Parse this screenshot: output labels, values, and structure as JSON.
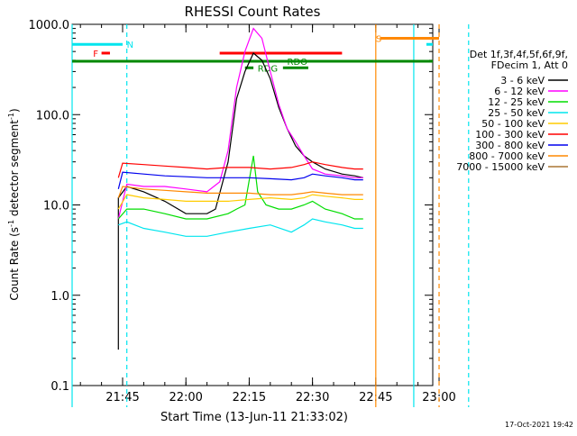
{
  "chart_data": {
    "type": "line",
    "title": "RHESSI Count Rates",
    "xlabel": "Start Time (13-Jun-11 21:33:02)",
    "ylabel_main": "Count Rate (s",
    "ylabel_sup1": "-1",
    "ylabel_mid": " detector segment",
    "ylabel_sup2": "-1",
    "ylabel_end": ")",
    "timestamp": "17-Oct-2021 19:42",
    "x_scale": "time",
    "x_range": [
      "21:33:02",
      "22:58:30"
    ],
    "x_ticks": [
      "21:45",
      "22:00",
      "22:15",
      "22:30",
      "22:45",
      "23:00"
    ],
    "y_scale": "log",
    "y_range": [
      0.1,
      1000
    ],
    "y_ticks": [
      {
        "value": 1000,
        "label": "1000.0"
      },
      {
        "value": 100,
        "label": "100.0"
      },
      {
        "value": 10,
        "label": "10.0"
      },
      {
        "value": 1,
        "label": "1.0"
      },
      {
        "value": 0.1,
        "label": "0.1"
      }
    ],
    "legend_header": [
      "Det 1f,3f,4f,5f,6f,9f,",
      "FDecim 1, Att 0"
    ],
    "legend_position": "right",
    "series": [
      {
        "name": "3 - 6 keV",
        "color": "#000000",
        "points": [
          [
            "21:44",
            0.25
          ],
          [
            "21:44",
            0.55
          ],
          [
            "21:44",
            12
          ],
          [
            "21:46",
            16
          ],
          [
            "21:50",
            14
          ],
          [
            "21:55",
            11
          ],
          [
            "22:00",
            8
          ],
          [
            "22:05",
            8
          ],
          [
            "22:07",
            9
          ],
          [
            "22:10",
            30
          ],
          [
            "22:12",
            150
          ],
          [
            "22:14",
            300
          ],
          [
            "22:16",
            480
          ],
          [
            "22:18",
            400
          ],
          [
            "22:20",
            250
          ],
          [
            "22:22",
            120
          ],
          [
            "22:24",
            70
          ],
          [
            "22:26",
            45
          ],
          [
            "22:28",
            35
          ],
          [
            "22:30",
            30
          ],
          [
            "22:33",
            25
          ],
          [
            "22:37",
            22
          ],
          [
            "22:40",
            21
          ],
          [
            "22:42",
            20
          ]
        ]
      },
      {
        "name": "6 - 12 keV",
        "color": "#ff00ff",
        "points": [
          [
            "21:44",
            7
          ],
          [
            "21:46",
            17
          ],
          [
            "21:50",
            16
          ],
          [
            "21:55",
            16
          ],
          [
            "22:00",
            15
          ],
          [
            "22:05",
            14
          ],
          [
            "22:08",
            18
          ],
          [
            "22:10",
            40
          ],
          [
            "22:12",
            200
          ],
          [
            "22:14",
            500
          ],
          [
            "22:16",
            900
          ],
          [
            "22:18",
            700
          ],
          [
            "22:20",
            300
          ],
          [
            "22:22",
            130
          ],
          [
            "22:24",
            70
          ],
          [
            "22:26",
            50
          ],
          [
            "22:28",
            35
          ],
          [
            "22:30",
            25
          ],
          [
            "22:33",
            22
          ],
          [
            "22:37",
            21
          ],
          [
            "22:40",
            20
          ],
          [
            "22:42",
            20
          ]
        ]
      },
      {
        "name": "12 - 25 keV",
        "color": "#00dd00",
        "points": [
          [
            "21:44",
            7
          ],
          [
            "21:46",
            9
          ],
          [
            "21:50",
            9
          ],
          [
            "21:55",
            8
          ],
          [
            "22:00",
            7
          ],
          [
            "22:05",
            7
          ],
          [
            "22:10",
            8
          ],
          [
            "22:12",
            9
          ],
          [
            "22:14",
            10
          ],
          [
            "22:16",
            35
          ],
          [
            "22:17",
            14
          ],
          [
            "22:19",
            10
          ],
          [
            "22:22",
            9
          ],
          [
            "22:25",
            9
          ],
          [
            "22:28",
            10
          ],
          [
            "22:30",
            11
          ],
          [
            "22:33",
            9
          ],
          [
            "22:37",
            8
          ],
          [
            "22:40",
            7
          ],
          [
            "22:42",
            7
          ]
        ]
      },
      {
        "name": "25 - 50 keV",
        "color": "#00e5ee",
        "points": [
          [
            "21:44",
            6
          ],
          [
            "21:46",
            6.5
          ],
          [
            "21:50",
            5.5
          ],
          [
            "21:55",
            5
          ],
          [
            "22:00",
            4.5
          ],
          [
            "22:05",
            4.5
          ],
          [
            "22:10",
            5
          ],
          [
            "22:15",
            5.5
          ],
          [
            "22:20",
            6
          ],
          [
            "22:25",
            5
          ],
          [
            "22:28",
            6
          ],
          [
            "22:30",
            7
          ],
          [
            "22:33",
            6.5
          ],
          [
            "22:37",
            6
          ],
          [
            "22:40",
            5.5
          ],
          [
            "22:42",
            5.5
          ]
        ]
      },
      {
        "name": "50 - 100 keV",
        "color": "#ffcc00",
        "points": [
          [
            "21:44",
            9
          ],
          [
            "21:46",
            13
          ],
          [
            "21:50",
            12
          ],
          [
            "21:55",
            11.5
          ],
          [
            "22:00",
            11
          ],
          [
            "22:05",
            11
          ],
          [
            "22:10",
            11
          ],
          [
            "22:15",
            11.5
          ],
          [
            "22:20",
            12
          ],
          [
            "22:25",
            11.5
          ],
          [
            "22:28",
            12
          ],
          [
            "22:30",
            13
          ],
          [
            "22:33",
            12.5
          ],
          [
            "22:37",
            12
          ],
          [
            "22:40",
            11.5
          ],
          [
            "22:42",
            11.5
          ]
        ]
      },
      {
        "name": "100 - 300 keV",
        "color": "#ff0000",
        "points": [
          [
            "21:44",
            20
          ],
          [
            "21:45",
            29
          ],
          [
            "21:50",
            28
          ],
          [
            "21:55",
            27
          ],
          [
            "22:00",
            26
          ],
          [
            "22:05",
            25
          ],
          [
            "22:10",
            26
          ],
          [
            "22:15",
            26
          ],
          [
            "22:20",
            25
          ],
          [
            "22:25",
            26
          ],
          [
            "22:28",
            28
          ],
          [
            "22:30",
            30
          ],
          [
            "22:33",
            28
          ],
          [
            "22:37",
            26
          ],
          [
            "22:40",
            25
          ],
          [
            "22:42",
            25
          ]
        ]
      },
      {
        "name": "300 - 800 keV",
        "color": "#0000ee",
        "points": [
          [
            "21:44",
            15
          ],
          [
            "21:45",
            23
          ],
          [
            "21:50",
            22
          ],
          [
            "21:55",
            21
          ],
          [
            "22:00",
            20.5
          ],
          [
            "22:05",
            20
          ],
          [
            "22:10",
            20
          ],
          [
            "22:15",
            20
          ],
          [
            "22:20",
            19.5
          ],
          [
            "22:25",
            19
          ],
          [
            "22:28",
            20
          ],
          [
            "22:30",
            22
          ],
          [
            "22:33",
            21
          ],
          [
            "22:37",
            20
          ],
          [
            "22:40",
            19
          ],
          [
            "22:42",
            19
          ]
        ]
      },
      {
        "name": "800 - 7000 keV",
        "color": "#ff8800",
        "points": [
          [
            "21:44",
            12
          ],
          [
            "21:45",
            16
          ],
          [
            "21:50",
            15
          ],
          [
            "21:55",
            14.5
          ],
          [
            "22:00",
            14
          ],
          [
            "22:05",
            13.5
          ],
          [
            "22:10",
            13.5
          ],
          [
            "22:15",
            13.5
          ],
          [
            "22:20",
            13
          ],
          [
            "22:25",
            13
          ],
          [
            "22:28",
            13.5
          ],
          [
            "22:30",
            14
          ],
          [
            "22:33",
            13.5
          ],
          [
            "22:37",
            13
          ],
          [
            "22:40",
            13
          ],
          [
            "22:42",
            13
          ]
        ]
      },
      {
        "name": "7000 - 15000 keV",
        "color": "#aa7733",
        "points": []
      }
    ],
    "hlines": [
      {
        "label": "N",
        "color": "#00e5ee",
        "y": 600,
        "segments": [
          [
            "21:33:02",
            "21:45"
          ],
          [
            "22:57",
            "22:58:30"
          ]
        ],
        "label_at": "21:46"
      },
      {
        "label": "F",
        "color": "#ff0000",
        "y": 480,
        "segments": [
          [
            "21:40",
            "21:42"
          ]
        ],
        "label_at": "21:38"
      },
      {
        "label": "S",
        "color": "#ff8800",
        "y": 700,
        "segments": [
          [
            "22:46",
            "23:00"
          ]
        ],
        "label_at": "22:45"
      },
      {
        "label": "",
        "color": "#ff0000",
        "y": 480,
        "segments": [
          [
            "22:08",
            "22:37"
          ]
        ],
        "label_at": ""
      },
      {
        "label": "",
        "color": "#008800",
        "y": 390,
        "segments": [
          [
            "21:33:02",
            "22:58:30"
          ]
        ],
        "label_at": ""
      },
      {
        "label": "RDO",
        "color": "#008800",
        "y": 390,
        "segments": [
          [
            "22:14",
            "22:23"
          ]
        ],
        "label_at": "22:24"
      },
      {
        "label": "RDG",
        "color": "#008800",
        "y": 330,
        "segments": [
          [
            "22:14",
            "22:16"
          ],
          [
            "22:23",
            "22:29"
          ]
        ],
        "label_at": "22:17"
      }
    ],
    "vlines": [
      {
        "color": "#00e5ee",
        "style": "solid",
        "x": "21:33:02"
      },
      {
        "color": "#00e5ee",
        "style": "dashed",
        "x": "21:46"
      },
      {
        "color": "#ff8800",
        "style": "solid",
        "x": "22:45"
      },
      {
        "color": "#00e5ee",
        "style": "solid",
        "x": "22:54"
      },
      {
        "color": "#ff8800",
        "style": "dashed",
        "x": "23:00"
      },
      {
        "color": "#00e5ee",
        "style": "dashed",
        "x": "23:07"
      }
    ]
  }
}
